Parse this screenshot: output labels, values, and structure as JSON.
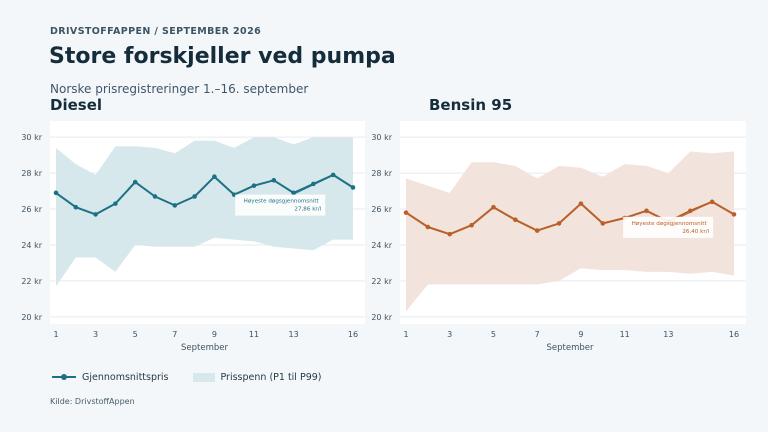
{
  "header": {
    "kicker": "DRIVSTOFFAPPEN  /  SEPTEMBER 2026",
    "title": "Store forskjeller ved pumpa",
    "subtitle": "Norske prisregistreringer 1.–16. september"
  },
  "legend": {
    "line_label": "Gjennomsnittspris",
    "band_label": "Prisspenn (P1 til P99)"
  },
  "source": "Kilde: DrivstoffAppen",
  "colors": {
    "diesel_line": "#1c7185",
    "diesel_band": "#d7e8ec",
    "bensin_line": "#b9602a",
    "bensin_band": "#f2e4dc",
    "plot_bg": "#ffffff",
    "grid": "#e7eaec"
  },
  "chart_data": [
    {
      "type": "line",
      "title": "Diesel",
      "xlabel": "September",
      "ylabel": "",
      "x": [
        1,
        2,
        3,
        4,
        5,
        6,
        7,
        8,
        9,
        10,
        11,
        12,
        13,
        14,
        15,
        16
      ],
      "xticks": [
        1,
        3,
        5,
        7,
        9,
        11,
        13,
        16
      ],
      "yticks": [
        20,
        22,
        24,
        26,
        28,
        30
      ],
      "ytick_labels": [
        "20 kr",
        "22 kr",
        "24 kr",
        "26 kr",
        "28 kr",
        "30 kr"
      ],
      "ylim": [
        19.6,
        30.9
      ],
      "grid": true,
      "legend_position": "bottom",
      "series": [
        {
          "name": "Gjennomsnittspris",
          "values": [
            26.9,
            26.1,
            25.7,
            26.3,
            27.5,
            26.7,
            26.2,
            26.7,
            27.8,
            26.8,
            27.3,
            27.6,
            26.9,
            27.4,
            27.9,
            27.2
          ]
        },
        {
          "name": "Prisspenn (P1 til P99)",
          "low": [
            21.7,
            23.3,
            23.3,
            22.5,
            24.0,
            23.9,
            23.9,
            23.9,
            24.4,
            24.3,
            24.2,
            23.9,
            23.8,
            23.7,
            24.3,
            24.3
          ],
          "high": [
            29.4,
            28.5,
            27.9,
            29.5,
            29.5,
            29.4,
            29.1,
            29.8,
            29.8,
            29.4,
            30.0,
            30.0,
            29.6,
            30.0,
            30.0,
            30.0
          ]
        }
      ],
      "annotation": {
        "x": 15,
        "y": 27.86,
        "line1": "Høyeste døgsgjennomsnitt",
        "line2": "27,86 kr/l"
      }
    },
    {
      "type": "line",
      "title": "Bensin 95",
      "xlabel": "September",
      "ylabel": "",
      "x": [
        1,
        2,
        3,
        4,
        5,
        6,
        7,
        8,
        9,
        10,
        11,
        12,
        13,
        14,
        15,
        16
      ],
      "xticks": [
        1,
        3,
        5,
        7,
        9,
        11,
        13,
        16
      ],
      "yticks": [
        20,
        22,
        24,
        26,
        28,
        30
      ],
      "ytick_labels": [
        "20 kr",
        "22 kr",
        "24 kr",
        "26 kr",
        "28 kr",
        "30 kr"
      ],
      "ylim": [
        19.6,
        30.9
      ],
      "grid": true,
      "legend_position": "bottom",
      "series": [
        {
          "name": "Gjennomsnittspris",
          "values": [
            25.8,
            25.0,
            24.6,
            25.1,
            26.1,
            25.4,
            24.8,
            25.2,
            26.3,
            25.2,
            25.5,
            25.9,
            25.3,
            25.9,
            26.4,
            25.7
          ]
        },
        {
          "name": "Prisspenn (P1 til P99)",
          "low": [
            20.3,
            21.8,
            21.8,
            21.8,
            21.8,
            21.8,
            21.8,
            22.0,
            22.7,
            22.6,
            22.6,
            22.5,
            22.5,
            22.4,
            22.5,
            22.3
          ],
          "high": [
            27.7,
            27.3,
            26.9,
            28.6,
            28.6,
            28.4,
            27.7,
            28.4,
            28.3,
            27.8,
            28.5,
            28.4,
            28.0,
            29.2,
            29.1,
            29.2
          ]
        }
      ],
      "annotation": {
        "x": 15,
        "y": 26.4,
        "line1": "Høyeste døgsgjennomsnitt",
        "line2": "26,40 kr/l"
      }
    }
  ]
}
